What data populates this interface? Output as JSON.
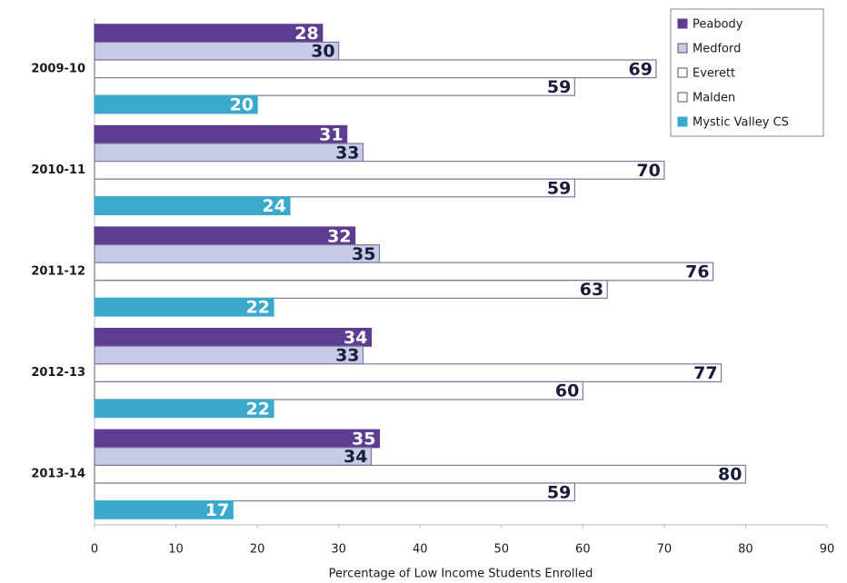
{
  "chart_data": {
    "type": "hbar",
    "xlabel": "Percentage of Low Income Students Enrolled",
    "categories": [
      "2009-10",
      "2010-11",
      "2011-12",
      "2012-13",
      "2013-14"
    ],
    "series": [
      {
        "name": "Peabody",
        "color": "#5e3c8f",
        "values": [
          28,
          31,
          32,
          34,
          35
        ]
      },
      {
        "name": "Medford",
        "color": "#c9c9e8",
        "values": [
          30,
          33,
          35,
          33,
          34
        ]
      },
      {
        "name": "Everett",
        "color": "#ffffff",
        "values": [
          69,
          70,
          76,
          77,
          80
        ]
      },
      {
        "name": "Malden",
        "color": "#ffffff",
        "values": [
          59,
          59,
          63,
          60,
          59
        ]
      },
      {
        "name": "Mystic Valley CS",
        "color": "#3aa9cc",
        "values": [
          20,
          24,
          22,
          22,
          17
        ]
      }
    ],
    "xlim": [
      0,
      90
    ],
    "xticks": [
      0,
      10,
      20,
      30,
      40,
      50,
      60,
      70,
      80,
      90
    ],
    "grid": false,
    "legend": "top-right"
  }
}
